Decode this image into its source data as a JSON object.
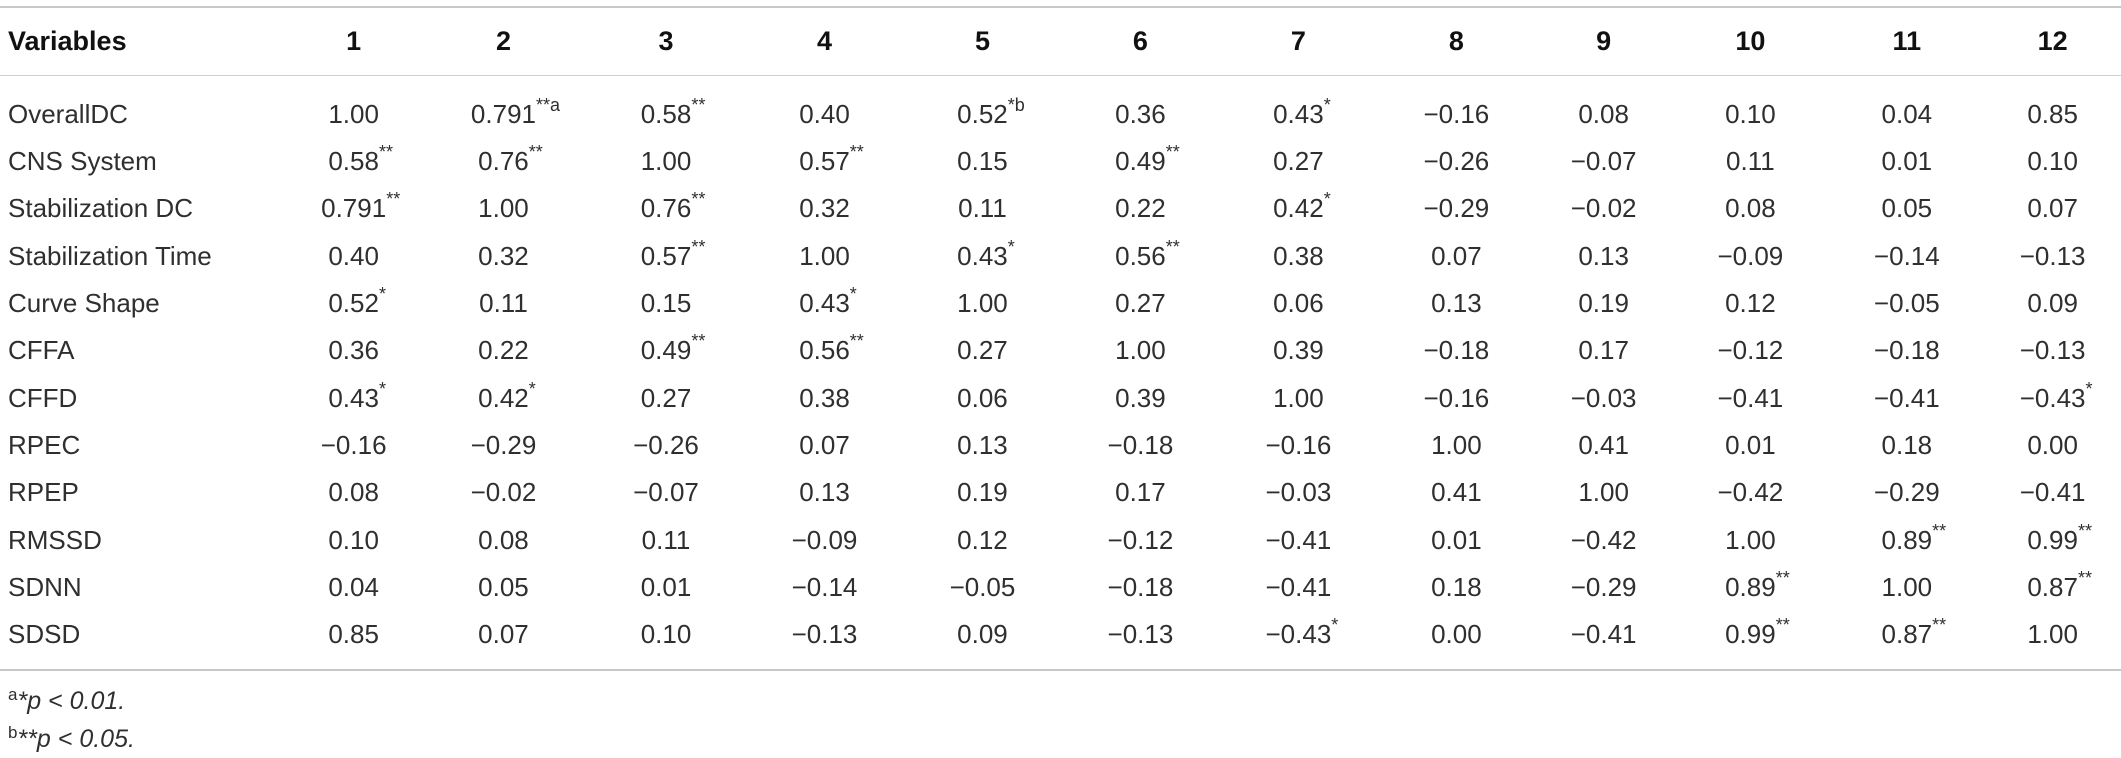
{
  "table": {
    "headers": [
      "Variables",
      "1",
      "2",
      "3",
      "4",
      "5",
      "6",
      "7",
      "8",
      "9",
      "10",
      "11",
      "12"
    ],
    "rows": [
      {
        "label": "OverallDC",
        "cells": [
          {
            "v": "1.00",
            "m": ""
          },
          {
            "v": "0.791",
            "m": "**a"
          },
          {
            "v": "0.58",
            "m": "**"
          },
          {
            "v": "0.40",
            "m": ""
          },
          {
            "v": "0.52",
            "m": "*b"
          },
          {
            "v": "0.36",
            "m": ""
          },
          {
            "v": "0.43",
            "m": "*"
          },
          {
            "v": "−0.16",
            "m": ""
          },
          {
            "v": "0.08",
            "m": ""
          },
          {
            "v": "0.10",
            "m": ""
          },
          {
            "v": "0.04",
            "m": ""
          },
          {
            "v": "0.85",
            "m": ""
          }
        ]
      },
      {
        "label": "CNS System",
        "cells": [
          {
            "v": "0.58",
            "m": "**"
          },
          {
            "v": "0.76",
            "m": "**"
          },
          {
            "v": "1.00",
            "m": ""
          },
          {
            "v": "0.57",
            "m": "**"
          },
          {
            "v": "0.15",
            "m": ""
          },
          {
            "v": "0.49",
            "m": "**"
          },
          {
            "v": "0.27",
            "m": ""
          },
          {
            "v": "−0.26",
            "m": ""
          },
          {
            "v": "−0.07",
            "m": ""
          },
          {
            "v": "0.11",
            "m": ""
          },
          {
            "v": "0.01",
            "m": ""
          },
          {
            "v": "0.10",
            "m": ""
          }
        ]
      },
      {
        "label": "Stabilization DC",
        "cells": [
          {
            "v": "0.791",
            "m": "**"
          },
          {
            "v": "1.00",
            "m": ""
          },
          {
            "v": "0.76",
            "m": "**"
          },
          {
            "v": "0.32",
            "m": ""
          },
          {
            "v": "0.11",
            "m": ""
          },
          {
            "v": "0.22",
            "m": ""
          },
          {
            "v": "0.42",
            "m": "*"
          },
          {
            "v": "−0.29",
            "m": ""
          },
          {
            "v": "−0.02",
            "m": ""
          },
          {
            "v": "0.08",
            "m": ""
          },
          {
            "v": "0.05",
            "m": ""
          },
          {
            "v": "0.07",
            "m": ""
          }
        ]
      },
      {
        "label": "Stabilization Time",
        "cells": [
          {
            "v": "0.40",
            "m": ""
          },
          {
            "v": "0.32",
            "m": ""
          },
          {
            "v": "0.57",
            "m": "**"
          },
          {
            "v": "1.00",
            "m": ""
          },
          {
            "v": "0.43",
            "m": "*"
          },
          {
            "v": "0.56",
            "m": "**"
          },
          {
            "v": "0.38",
            "m": ""
          },
          {
            "v": "0.07",
            "m": ""
          },
          {
            "v": "0.13",
            "m": ""
          },
          {
            "v": "−0.09",
            "m": ""
          },
          {
            "v": "−0.14",
            "m": ""
          },
          {
            "v": "−0.13",
            "m": ""
          }
        ]
      },
      {
        "label": "Curve Shape",
        "cells": [
          {
            "v": "0.52",
            "m": "*"
          },
          {
            "v": "0.11",
            "m": ""
          },
          {
            "v": "0.15",
            "m": ""
          },
          {
            "v": "0.43",
            "m": "*"
          },
          {
            "v": "1.00",
            "m": ""
          },
          {
            "v": "0.27",
            "m": ""
          },
          {
            "v": "0.06",
            "m": ""
          },
          {
            "v": "0.13",
            "m": ""
          },
          {
            "v": "0.19",
            "m": ""
          },
          {
            "v": "0.12",
            "m": ""
          },
          {
            "v": "−0.05",
            "m": ""
          },
          {
            "v": "0.09",
            "m": ""
          }
        ]
      },
      {
        "label": "CFFA",
        "cells": [
          {
            "v": "0.36",
            "m": ""
          },
          {
            "v": "0.22",
            "m": ""
          },
          {
            "v": "0.49",
            "m": "**"
          },
          {
            "v": "0.56",
            "m": "**"
          },
          {
            "v": "0.27",
            "m": ""
          },
          {
            "v": "1.00",
            "m": ""
          },
          {
            "v": "0.39",
            "m": ""
          },
          {
            "v": "−0.18",
            "m": ""
          },
          {
            "v": "0.17",
            "m": ""
          },
          {
            "v": "−0.12",
            "m": ""
          },
          {
            "v": "−0.18",
            "m": ""
          },
          {
            "v": "−0.13",
            "m": ""
          }
        ]
      },
      {
        "label": "CFFD",
        "cells": [
          {
            "v": "0.43",
            "m": "*"
          },
          {
            "v": "0.42",
            "m": "*"
          },
          {
            "v": "0.27",
            "m": ""
          },
          {
            "v": "0.38",
            "m": ""
          },
          {
            "v": "0.06",
            "m": ""
          },
          {
            "v": "0.39",
            "m": ""
          },
          {
            "v": "1.00",
            "m": ""
          },
          {
            "v": "−0.16",
            "m": ""
          },
          {
            "v": "−0.03",
            "m": ""
          },
          {
            "v": "−0.41",
            "m": ""
          },
          {
            "v": "−0.41",
            "m": ""
          },
          {
            "v": "−0.43",
            "m": "*"
          }
        ]
      },
      {
        "label": "RPEC",
        "cells": [
          {
            "v": "−0.16",
            "m": ""
          },
          {
            "v": "−0.29",
            "m": ""
          },
          {
            "v": "−0.26",
            "m": ""
          },
          {
            "v": "0.07",
            "m": ""
          },
          {
            "v": "0.13",
            "m": ""
          },
          {
            "v": "−0.18",
            "m": ""
          },
          {
            "v": "−0.16",
            "m": ""
          },
          {
            "v": "1.00",
            "m": ""
          },
          {
            "v": "0.41",
            "m": ""
          },
          {
            "v": "0.01",
            "m": ""
          },
          {
            "v": "0.18",
            "m": ""
          },
          {
            "v": "0.00",
            "m": ""
          }
        ]
      },
      {
        "label": "RPEP",
        "cells": [
          {
            "v": "0.08",
            "m": ""
          },
          {
            "v": "−0.02",
            "m": ""
          },
          {
            "v": "−0.07",
            "m": ""
          },
          {
            "v": "0.13",
            "m": ""
          },
          {
            "v": "0.19",
            "m": ""
          },
          {
            "v": "0.17",
            "m": ""
          },
          {
            "v": "−0.03",
            "m": ""
          },
          {
            "v": "0.41",
            "m": ""
          },
          {
            "v": "1.00",
            "m": ""
          },
          {
            "v": "−0.42",
            "m": ""
          },
          {
            "v": "−0.29",
            "m": ""
          },
          {
            "v": "−0.41",
            "m": ""
          }
        ]
      },
      {
        "label": "RMSSD",
        "cells": [
          {
            "v": "0.10",
            "m": ""
          },
          {
            "v": "0.08",
            "m": ""
          },
          {
            "v": "0.11",
            "m": ""
          },
          {
            "v": "−0.09",
            "m": ""
          },
          {
            "v": "0.12",
            "m": ""
          },
          {
            "v": "−0.12",
            "m": ""
          },
          {
            "v": "−0.41",
            "m": ""
          },
          {
            "v": "0.01",
            "m": ""
          },
          {
            "v": "−0.42",
            "m": ""
          },
          {
            "v": "1.00",
            "m": ""
          },
          {
            "v": "0.89",
            "m": "**"
          },
          {
            "v": "0.99",
            "m": "**"
          }
        ]
      },
      {
        "label": "SDNN",
        "cells": [
          {
            "v": "0.04",
            "m": ""
          },
          {
            "v": "0.05",
            "m": ""
          },
          {
            "v": "0.01",
            "m": ""
          },
          {
            "v": "−0.14",
            "m": ""
          },
          {
            "v": "−0.05",
            "m": ""
          },
          {
            "v": "−0.18",
            "m": ""
          },
          {
            "v": "−0.41",
            "m": ""
          },
          {
            "v": "0.18",
            "m": ""
          },
          {
            "v": "−0.29",
            "m": ""
          },
          {
            "v": "0.89",
            "m": "**"
          },
          {
            "v": "1.00",
            "m": ""
          },
          {
            "v": "0.87",
            "m": "**"
          }
        ]
      },
      {
        "label": "SDSD",
        "cells": [
          {
            "v": "0.85",
            "m": ""
          },
          {
            "v": "0.07",
            "m": ""
          },
          {
            "v": "0.10",
            "m": ""
          },
          {
            "v": "−0.13",
            "m": ""
          },
          {
            "v": "0.09",
            "m": ""
          },
          {
            "v": "−0.13",
            "m": ""
          },
          {
            "v": "−0.43",
            "m": "*"
          },
          {
            "v": "0.00",
            "m": ""
          },
          {
            "v": "−0.41",
            "m": ""
          },
          {
            "v": "0.99",
            "m": "**"
          },
          {
            "v": "0.87",
            "m": "**"
          },
          {
            "v": "1.00",
            "m": ""
          }
        ]
      }
    ]
  },
  "footnotes": [
    {
      "sup": "a",
      "text": "*p < 0.01."
    },
    {
      "sup": "b",
      "text": "**p < 0.05."
    }
  ]
}
